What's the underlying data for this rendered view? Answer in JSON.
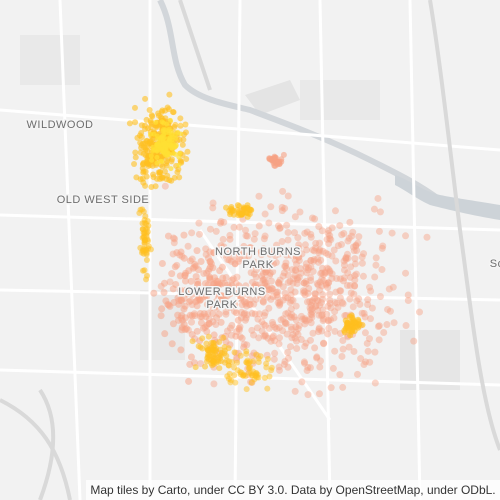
{
  "places": [
    {
      "lines": [
        "WILDWOOD"
      ]
    },
    {
      "lines": [
        "OLD WEST SIDE"
      ]
    },
    {
      "lines": [
        "NORTH BURNS",
        "PARK"
      ]
    },
    {
      "lines": [
        "LOWER BURNS",
        "PARK"
      ]
    },
    {
      "lines": [
        "So"
      ]
    }
  ],
  "attribution": "Map tiles by Carto, under CC BY 3.0. Data by OpenStreetMap, under ODbL."
}
